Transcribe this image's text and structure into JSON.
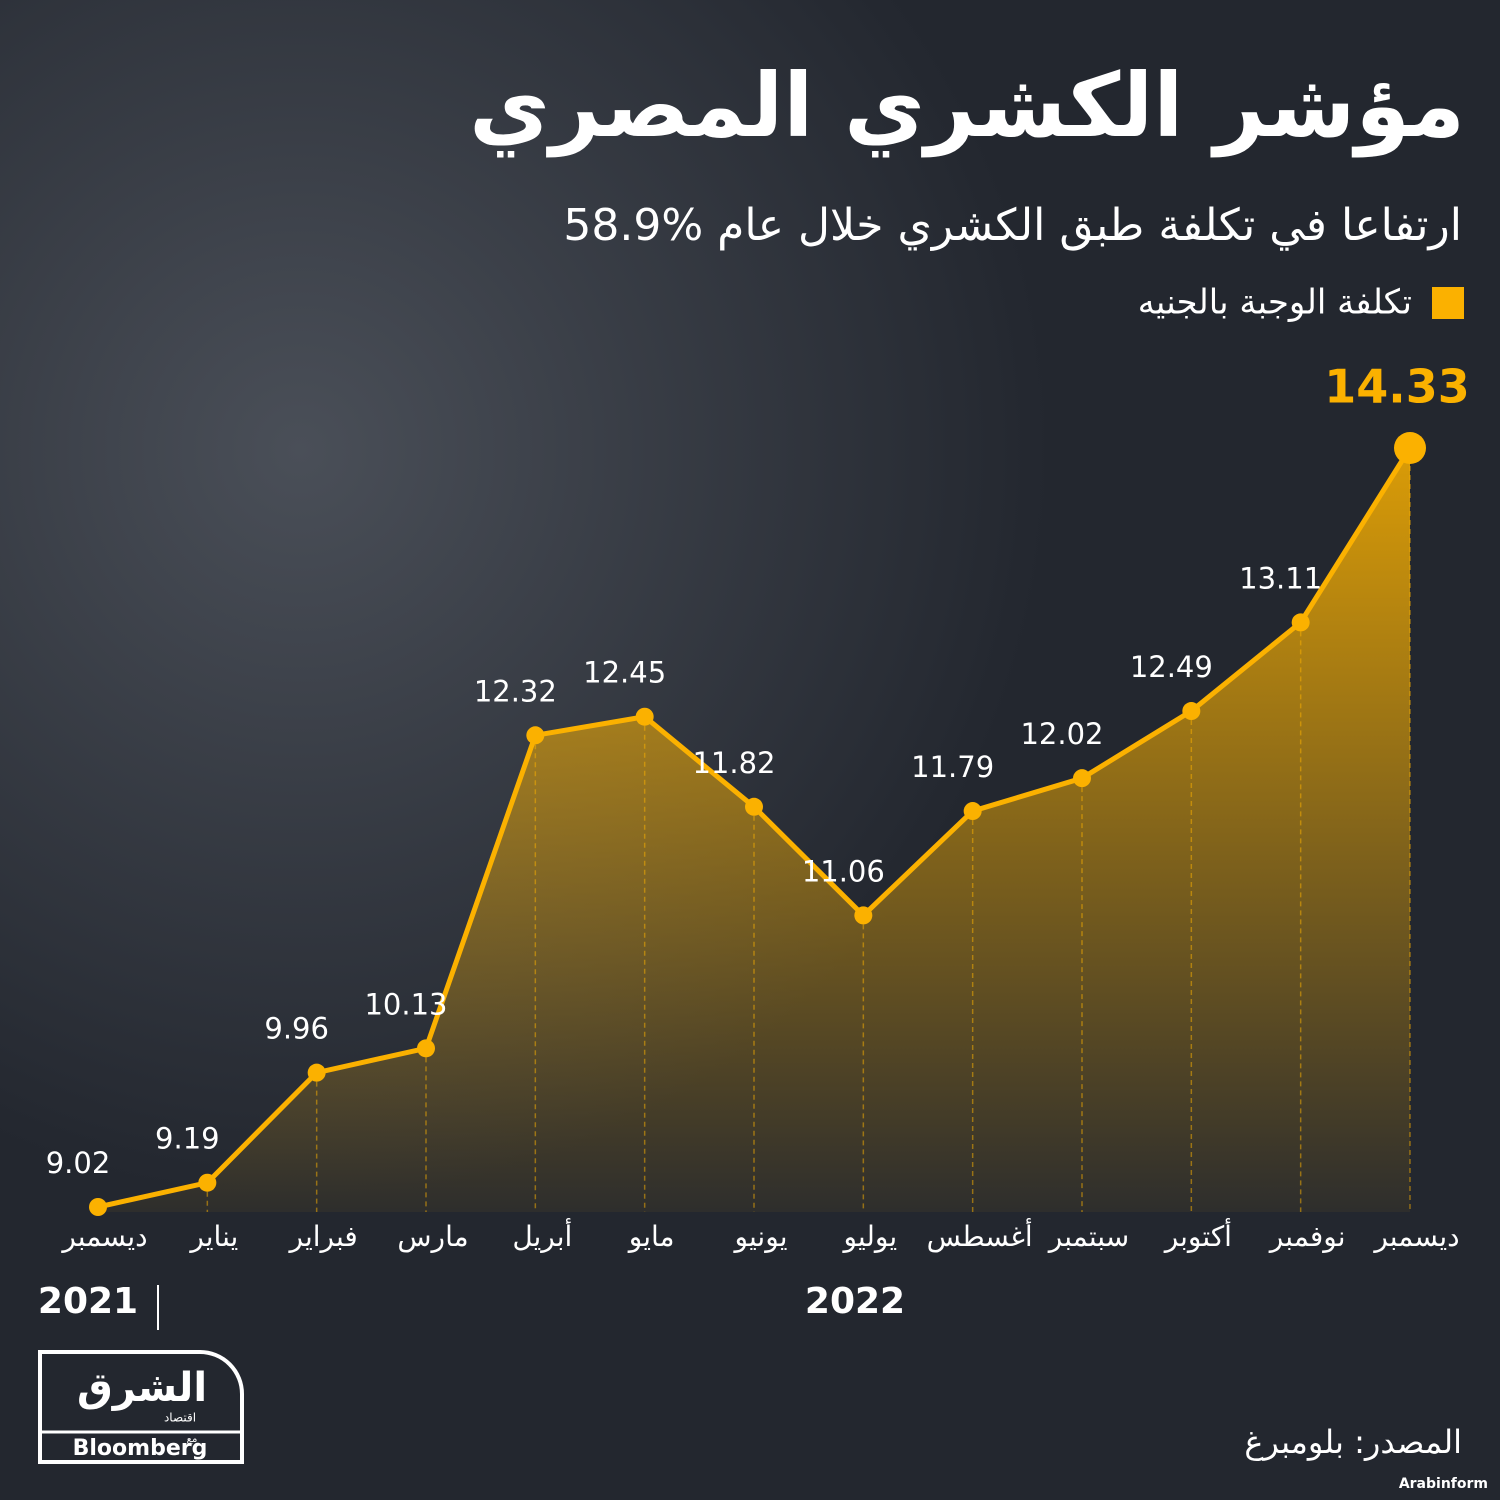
{
  "chart_data": {
    "type": "line",
    "title": "مؤشر الكشري المصري",
    "subtitle": "58.9% ارتفاعا في تكلفة طبق الكشري خلال عام",
    "categories": [
      "ديسمبر",
      "يناير",
      "فبراير",
      "مارس",
      "أبريل",
      "مايو",
      "يونيو",
      "يوليو",
      "أغسطس",
      "سبتمبر",
      "أكتوبر",
      "نوفمبر",
      "ديسمبر"
    ],
    "series": [
      {
        "name": "تكلفة الوجبة بالجنيه",
        "color": "#fbb100",
        "values": [
          9.02,
          9.19,
          9.96,
          10.13,
          12.32,
          12.45,
          11.82,
          11.06,
          11.79,
          12.02,
          12.49,
          13.11,
          14.33
        ]
      }
    ],
    "year_labels": [
      "2021",
      "2022"
    ]
  },
  "source": "المصدر: بلومبرغ",
  "logo": {
    "name": "الشرق",
    "tagline": "اقتصاد",
    "with": "مع",
    "partner": "Bloomberg"
  },
  "credit": "Arabinform"
}
